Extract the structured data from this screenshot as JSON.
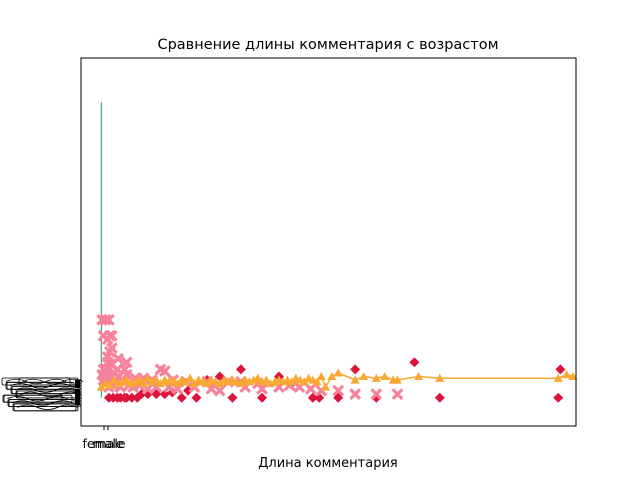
{
  "chart_data": {
    "type": "scatter",
    "title": "Сравнение длины комментария с возрастом",
    "xlabel": "Длина комментария",
    "ylabel": "",
    "xlim": [
      -48,
      1122
    ],
    "ylim": [
      -0.8,
      9.6
    ],
    "x_tick_labels": [
      "female",
      "male"
    ],
    "grid": false,
    "colors": {
      "diamonds": "#dc143c",
      "crosses": "#f7819b",
      "triangles": "#f9a832",
      "vline": "#2e8b57"
    },
    "vline": {
      "x": 0,
      "y_from": 0,
      "y_to": 8.35
    },
    "series": [
      {
        "marker": "diamond",
        "points": [
          [
            18,
            0.0
          ],
          [
            28,
            0.0
          ],
          [
            38,
            0.0
          ],
          [
            45,
            0.0
          ],
          [
            55,
            0.0
          ],
          [
            60,
            0.0
          ],
          [
            72,
            0.0
          ],
          [
            85,
            0.0
          ],
          [
            95,
            0.1
          ],
          [
            110,
            0.1
          ],
          [
            130,
            0.1
          ],
          [
            150,
            0.1
          ],
          [
            168,
            0.15
          ],
          [
            190,
            0.0
          ],
          [
            205,
            0.2
          ],
          [
            225,
            0.0
          ],
          [
            250,
            0.5
          ],
          [
            280,
            0.6
          ],
          [
            310,
            0.0
          ],
          [
            330,
            0.8
          ],
          [
            380,
            0.0
          ],
          [
            420,
            0.6
          ],
          [
            450,
            0.4
          ],
          [
            500,
            0.0
          ],
          [
            515,
            0.0
          ],
          [
            560,
            0.0
          ],
          [
            600,
            0.8
          ],
          [
            650,
            0.0
          ],
          [
            740,
            1.0
          ],
          [
            800,
            0.0
          ],
          [
            1080,
            0.0
          ],
          [
            1085,
            0.8
          ]
        ]
      },
      {
        "marker": "x",
        "points": [
          [
            2,
            2.2
          ],
          [
            10,
            2.2
          ],
          [
            18,
            2.2
          ],
          [
            5,
            1.75
          ],
          [
            20,
            1.75
          ],
          [
            25,
            1.75
          ],
          [
            15,
            1.65
          ],
          [
            25,
            1.4
          ],
          [
            20,
            1.3
          ],
          [
            15,
            1.15
          ],
          [
            15,
            1.0
          ],
          [
            22,
            0.95
          ],
          [
            38,
            0.8
          ],
          [
            55,
            0.8
          ],
          [
            40,
            1.1
          ],
          [
            60,
            1.0
          ],
          [
            140,
            0.8
          ],
          [
            150,
            0.75
          ],
          [
            5,
            0.8
          ],
          [
            12,
            0.8
          ],
          [
            30,
            0.7
          ],
          [
            2,
            0.65
          ],
          [
            15,
            0.6
          ],
          [
            25,
            0.6
          ],
          [
            42,
            0.6
          ],
          [
            60,
            0.65
          ],
          [
            80,
            0.55
          ],
          [
            100,
            0.55
          ],
          [
            120,
            0.5
          ],
          [
            170,
            0.5
          ],
          [
            200,
            0.45
          ],
          [
            250,
            0.45
          ],
          [
            300,
            0.45
          ],
          [
            330,
            0.45
          ],
          [
            370,
            0.4
          ],
          [
            420,
            0.3
          ],
          [
            445,
            0.35
          ],
          [
            468,
            0.3
          ],
          [
            495,
            0.25
          ],
          [
            520,
            0.2
          ],
          [
            560,
            0.2
          ],
          [
            600,
            0.1
          ],
          [
            650,
            0.1
          ],
          [
            700,
            0.1
          ],
          [
            5,
            0.5
          ],
          [
            8,
            0.4
          ],
          [
            12,
            0.45
          ],
          [
            18,
            0.3
          ],
          [
            28,
            0.35
          ],
          [
            35,
            0.4
          ],
          [
            45,
            0.3
          ],
          [
            52,
            0.45
          ],
          [
            65,
            0.35
          ],
          [
            75,
            0.3
          ],
          [
            90,
            0.35
          ],
          [
            110,
            0.25
          ],
          [
            130,
            0.3
          ],
          [
            160,
            0.3
          ],
          [
            180,
            0.25
          ],
          [
            220,
            0.3
          ],
          [
            260,
            0.25
          ],
          [
            280,
            0.2
          ],
          [
            340,
            0.3
          ],
          [
            380,
            0.25
          ]
        ]
      },
      {
        "marker": "triangle",
        "line": true,
        "points": [
          [
            0,
            0.3
          ],
          [
            10,
            0.4
          ],
          [
            20,
            0.35
          ],
          [
            30,
            0.5
          ],
          [
            40,
            0.4
          ],
          [
            50,
            0.45
          ],
          [
            60,
            0.5
          ],
          [
            70,
            0.4
          ],
          [
            80,
            0.45
          ],
          [
            90,
            0.5
          ],
          [
            100,
            0.4
          ],
          [
            110,
            0.55
          ],
          [
            120,
            0.45
          ],
          [
            130,
            0.5
          ],
          [
            140,
            0.4
          ],
          [
            150,
            0.5
          ],
          [
            160,
            0.45
          ],
          [
            170,
            0.5
          ],
          [
            180,
            0.4
          ],
          [
            190,
            0.5
          ],
          [
            200,
            0.45
          ],
          [
            210,
            0.55
          ],
          [
            220,
            0.4
          ],
          [
            230,
            0.5
          ],
          [
            240,
            0.45
          ],
          [
            250,
            0.4
          ],
          [
            260,
            0.5
          ],
          [
            270,
            0.45
          ],
          [
            280,
            0.4
          ],
          [
            290,
            0.5
          ],
          [
            300,
            0.45
          ],
          [
            310,
            0.5
          ],
          [
            320,
            0.45
          ],
          [
            330,
            0.4
          ],
          [
            340,
            0.5
          ],
          [
            350,
            0.45
          ],
          [
            360,
            0.5
          ],
          [
            370,
            0.55
          ],
          [
            380,
            0.45
          ],
          [
            390,
            0.5
          ],
          [
            400,
            0.4
          ],
          [
            410,
            0.45
          ],
          [
            420,
            0.5
          ],
          [
            430,
            0.45
          ],
          [
            440,
            0.5
          ],
          [
            450,
            0.45
          ],
          [
            460,
            0.55
          ],
          [
            470,
            0.5
          ],
          [
            480,
            0.45
          ],
          [
            490,
            0.55
          ],
          [
            500,
            0.5
          ],
          [
            510,
            0.45
          ],
          [
            520,
            0.6
          ],
          [
            530,
            0.3
          ],
          [
            545,
            0.6
          ],
          [
            560,
            0.7
          ],
          [
            600,
            0.5
          ],
          [
            620,
            0.6
          ],
          [
            650,
            0.55
          ],
          [
            670,
            0.6
          ],
          [
            690,
            0.5
          ],
          [
            700,
            0.5
          ],
          [
            750,
            0.6
          ],
          [
            800,
            0.55
          ],
          [
            1080,
            0.55
          ],
          [
            1100,
            0.65
          ],
          [
            1115,
            0.6
          ]
        ]
      }
    ]
  }
}
